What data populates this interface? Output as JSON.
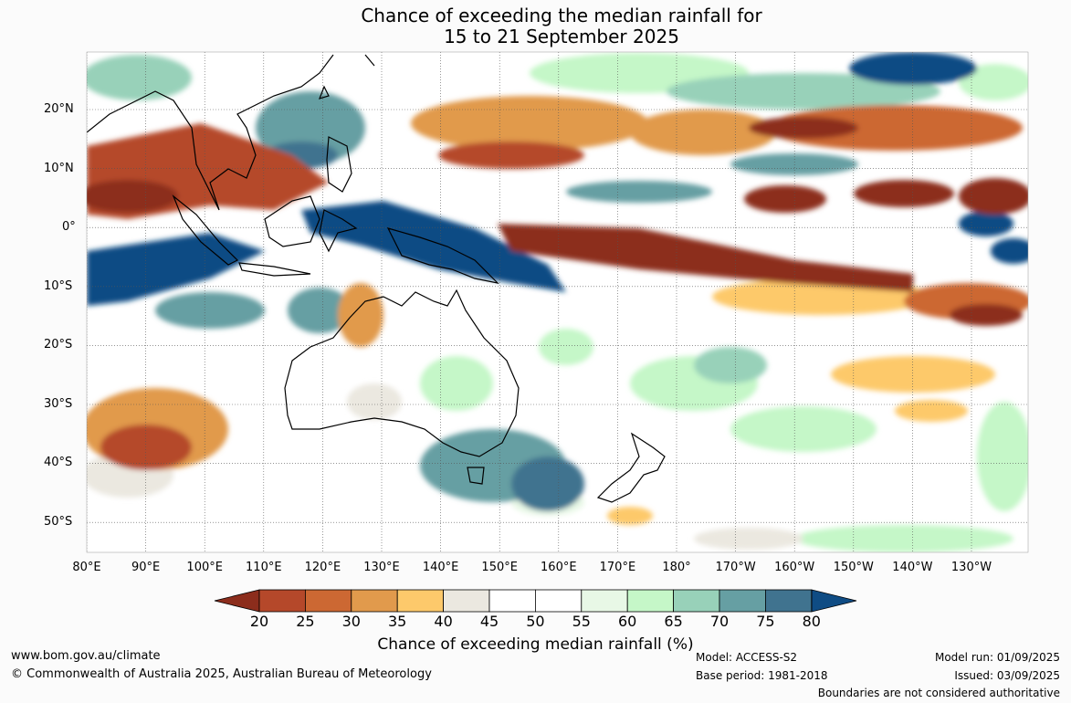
{
  "title": {
    "line1": "Chance of exceeding the median rainfall for",
    "line2": "15 to 21 September 2025"
  },
  "map": {
    "lat_labels": [
      "20°N",
      "10°N",
      "0°",
      "10°S",
      "20°S",
      "30°S",
      "40°S",
      "50°S"
    ],
    "lon_labels": [
      "80°E",
      "90°E",
      "100°E",
      "110°E",
      "120°E",
      "130°E",
      "140°E",
      "150°E",
      "160°E",
      "170°E",
      "180°",
      "170°W",
      "160°W",
      "150°W",
      "140°W",
      "130°W"
    ]
  },
  "colorbar": {
    "labels": [
      "20",
      "25",
      "30",
      "35",
      "40",
      "45",
      "50",
      "55",
      "60",
      "65",
      "70",
      "75",
      "80"
    ],
    "colors": [
      "#8c2d1c",
      "#b5482a",
      "#cc6833",
      "#e19a4c",
      "#fdc96b",
      "#ebe8e0",
      "#ffffff",
      "#ffffff",
      "#e8f8e6",
      "#c5f7c8",
      "#98d1b9",
      "#669fa3",
      "#40738f",
      "#0f4c84"
    ],
    "title": "Chance of exceeding median rainfall (%)"
  },
  "footer": {
    "website": "www.bom.gov.au/climate",
    "copyright": "© Commonwealth of Australia 2025, Australian Bureau of Meteorology",
    "model": "Model: ACCESS-S2",
    "base_period": "Base period: 1981-2018",
    "model_run": "Model run: 01/09/2025",
    "issued": "Issued: 03/09/2025",
    "disclaimer": "Boundaries are not considered authoritative"
  }
}
